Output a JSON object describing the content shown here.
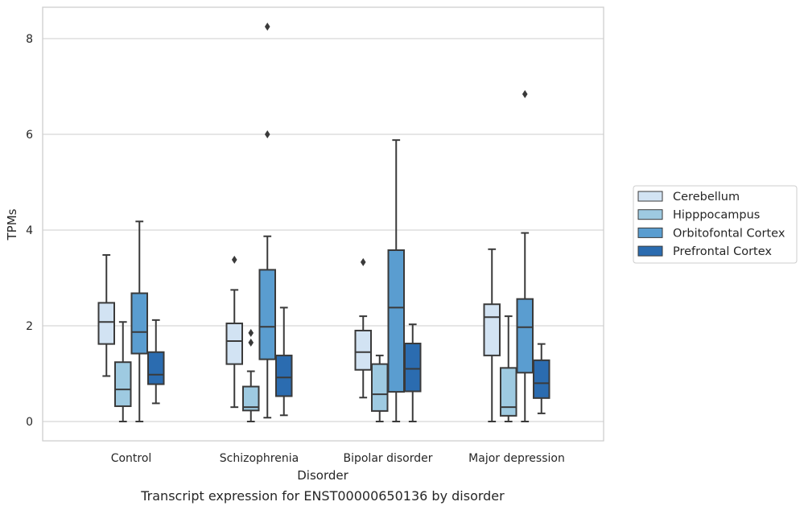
{
  "chart_data": {
    "type": "boxplot",
    "title": "",
    "caption": "Transcript expression for ENST00000650136 by disorder",
    "xlabel": "Disorder",
    "ylabel": "TPMs",
    "ylim": [
      -0.4,
      8.65
    ],
    "yticks": [
      0,
      2,
      4,
      6,
      8
    ],
    "grid": "horizontal",
    "legend_position": "right",
    "categories": [
      "Control",
      "Schizophrenia",
      "Bipolar disorder",
      "Major depression"
    ],
    "series": [
      {
        "name": "Cerebellum",
        "color": "#d2e3f3",
        "boxes": [
          {
            "whislo": 0.95,
            "q1": 1.62,
            "median": 2.08,
            "q3": 2.48,
            "whishi": 3.48,
            "fliers": []
          },
          {
            "whislo": 0.3,
            "q1": 1.2,
            "median": 1.68,
            "q3": 2.05,
            "whishi": 2.75,
            "fliers": [
              3.38
            ]
          },
          {
            "whislo": 0.5,
            "q1": 1.08,
            "median": 1.45,
            "q3": 1.9,
            "whishi": 2.2,
            "fliers": [
              3.33
            ]
          },
          {
            "whislo": 0.0,
            "q1": 1.38,
            "median": 2.18,
            "q3": 2.45,
            "whishi": 3.6,
            "fliers": []
          }
        ]
      },
      {
        "name": "Hipppocampus",
        "color": "#9ecae1",
        "boxes": [
          {
            "whislo": 0.0,
            "q1": 0.32,
            "median": 0.67,
            "q3": 1.24,
            "whishi": 2.08,
            "fliers": []
          },
          {
            "whislo": 0.0,
            "q1": 0.23,
            "median": 0.3,
            "q3": 0.73,
            "whishi": 1.05,
            "fliers": [
              1.85,
              1.65
            ]
          },
          {
            "whislo": 0.0,
            "q1": 0.22,
            "median": 0.57,
            "q3": 1.2,
            "whishi": 1.38,
            "fliers": []
          },
          {
            "whislo": 0.0,
            "q1": 0.12,
            "median": 0.3,
            "q3": 1.12,
            "whishi": 2.2,
            "fliers": []
          }
        ]
      },
      {
        "name": "Orbitofontal Cortex",
        "color": "#5a9dd0",
        "boxes": [
          {
            "whislo": 0.0,
            "q1": 1.42,
            "median": 1.87,
            "q3": 2.68,
            "whishi": 4.18,
            "fliers": []
          },
          {
            "whislo": 0.08,
            "q1": 1.3,
            "median": 1.98,
            "q3": 3.17,
            "whishi": 3.87,
            "fliers": [
              6.0,
              8.25
            ]
          },
          {
            "whislo": 0.0,
            "q1": 0.62,
            "median": 2.38,
            "q3": 3.58,
            "whishi": 5.88,
            "fliers": []
          },
          {
            "whislo": 0.0,
            "q1": 1.02,
            "median": 1.97,
            "q3": 2.56,
            "whishi": 3.94,
            "fliers": [
              6.84
            ]
          }
        ]
      },
      {
        "name": "Prefrontal Cortex",
        "color": "#2b6cb0",
        "boxes": [
          {
            "whislo": 0.38,
            "q1": 0.78,
            "median": 0.98,
            "q3": 1.45,
            "whishi": 2.12,
            "fliers": []
          },
          {
            "whislo": 0.13,
            "q1": 0.53,
            "median": 0.92,
            "q3": 1.38,
            "whishi": 2.38,
            "fliers": []
          },
          {
            "whislo": 0.0,
            "q1": 0.63,
            "median": 1.1,
            "q3": 1.63,
            "whishi": 2.03,
            "fliers": []
          },
          {
            "whislo": 0.17,
            "q1": 0.49,
            "median": 0.8,
            "q3": 1.28,
            "whishi": 1.62,
            "fliers": []
          }
        ]
      }
    ]
  }
}
